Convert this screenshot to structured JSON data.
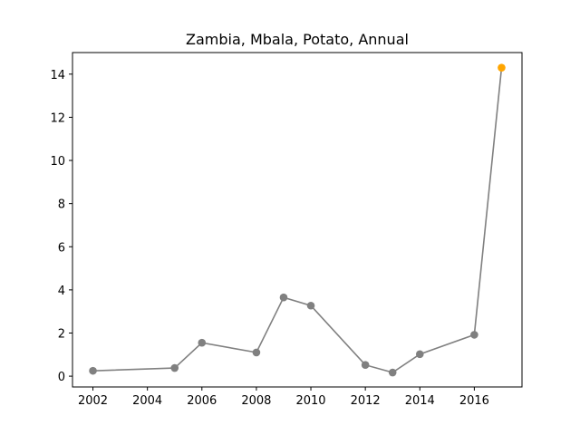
{
  "chart_data": {
    "type": "line",
    "title": "Zambia, Mbala, Potato, Annual",
    "xlabel": "",
    "ylabel": "",
    "xlim": [
      2001.25,
      2017.75
    ],
    "ylim": [
      -0.5,
      15.0
    ],
    "xticks": [
      2002,
      2004,
      2006,
      2008,
      2010,
      2012,
      2014,
      2016
    ],
    "yticks": [
      0,
      2,
      4,
      6,
      8,
      10,
      12,
      14
    ],
    "grid": false,
    "line_color": "#808080",
    "highlight_color": "#FFA500",
    "series": [
      {
        "x": [
          2002,
          2005,
          2006,
          2008,
          2009,
          2010,
          2012,
          2013,
          2014,
          2016
        ],
        "y": [
          0.25,
          0.38,
          1.55,
          1.1,
          3.65,
          3.27,
          0.52,
          0.17,
          1.02,
          1.92
        ]
      }
    ],
    "highlight": {
      "x": [
        2016,
        2017
      ],
      "y": [
        1.92,
        14.3
      ]
    }
  }
}
